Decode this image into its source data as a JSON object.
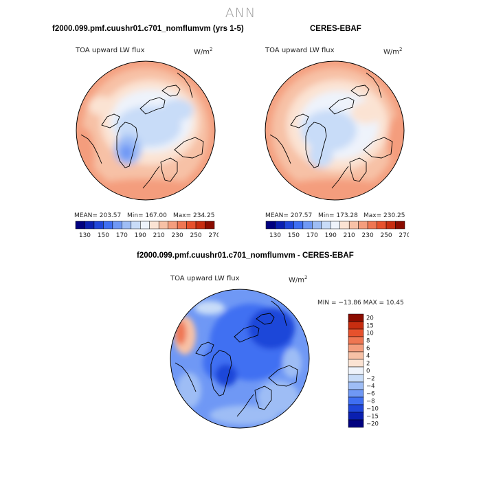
{
  "page": {
    "title": "ANN"
  },
  "panels": [
    {
      "title": "f2000.099.pmf.cuushr01.c701_nomflumvm (yrs 1-5)",
      "field": "TOA upward LW flux",
      "units_base": "W/m",
      "units_exp": "2",
      "stats": {
        "mean_text": "MEAN= 203.57",
        "min_text": "Min= 167.00",
        "max_text": "Max= 234.25"
      }
    },
    {
      "title": "CERES-EBAF",
      "field": "TOA upward LW flux",
      "units_base": "W/m",
      "units_exp": "2",
      "stats": {
        "mean_text": "MEAN= 207.57",
        "min_text": "Min= 173.28",
        "max_text": "Max= 230.25"
      }
    },
    {
      "title": "f2000.099.pmf.cuushr01.c701_nomflumvm - CERES-EBAF",
      "field": "TOA upward LW flux",
      "units_base": "W/m",
      "units_exp": "2",
      "stats": {
        "minmax_text": "MIN = −13.86  MAX =  10.45"
      }
    }
  ],
  "chart_data": [
    {
      "type": "heatmap",
      "projection": "north-polar-stereographic",
      "title": "f2000.099.pmf.cuushr01.c701_nomflumvm (yrs 1-5)",
      "variable": "TOA upward LW flux",
      "units": "W/m2",
      "mean": 203.57,
      "min": 167.0,
      "max": 234.25,
      "colorbar": {
        "orientation": "horizontal",
        "boundaries": [
          130,
          140,
          150,
          160,
          170,
          180,
          190,
          200,
          210,
          220,
          230,
          240,
          250,
          260,
          270
        ],
        "tick_labels": [
          "130",
          "150",
          "170",
          "190",
          "210",
          "230",
          "250",
          "270"
        ],
        "colors": [
          "#00007f",
          "#0a1fb0",
          "#1f46d9",
          "#3f6ff2",
          "#6f98f5",
          "#9ebdf5",
          "#c8dcf8",
          "#eef3fb",
          "#fbe3d3",
          "#f7c1a6",
          "#f49d7d",
          "#ef7652",
          "#e6512c",
          "#c72d10",
          "#8a0c00"
        ]
      }
    },
    {
      "type": "heatmap",
      "projection": "north-polar-stereographic",
      "title": "CERES-EBAF",
      "variable": "TOA upward LW flux",
      "units": "W/m2",
      "mean": 207.57,
      "min": 173.28,
      "max": 230.25,
      "colorbar": {
        "orientation": "horizontal",
        "boundaries": [
          130,
          140,
          150,
          160,
          170,
          180,
          190,
          200,
          210,
          220,
          230,
          240,
          250,
          260,
          270
        ],
        "tick_labels": [
          "130",
          "150",
          "170",
          "190",
          "210",
          "230",
          "250",
          "270"
        ],
        "colors": [
          "#00007f",
          "#0a1fb0",
          "#1f46d9",
          "#3f6ff2",
          "#6f98f5",
          "#9ebdf5",
          "#c8dcf8",
          "#eef3fb",
          "#fbe3d3",
          "#f7c1a6",
          "#f49d7d",
          "#ef7652",
          "#e6512c",
          "#c72d10",
          "#8a0c00"
        ]
      }
    },
    {
      "type": "heatmap",
      "projection": "north-polar-stereographic",
      "title": "f2000.099.pmf.cuushr01.c701_nomflumvm - CERES-EBAF",
      "variable": "TOA upward LW flux",
      "units": "W/m2",
      "min": -13.86,
      "max": 10.45,
      "colorbar": {
        "orientation": "vertical",
        "tick_labels": [
          "20",
          "15",
          "10",
          "8",
          "6",
          "4",
          "2",
          "0",
          "−2",
          "−4",
          "−6",
          "−8",
          "−10",
          "−15",
          "−20"
        ],
        "colors": [
          "#8a0c00",
          "#c72d10",
          "#e6512c",
          "#ef7652",
          "#f49d7d",
          "#f7c1a6",
          "#fbe3d3",
          "#eef3fb",
          "#c8dcf8",
          "#9ebdf5",
          "#6f98f5",
          "#3f6ff2",
          "#1f46d9",
          "#0a1fb0",
          "#00007f"
        ]
      }
    }
  ]
}
